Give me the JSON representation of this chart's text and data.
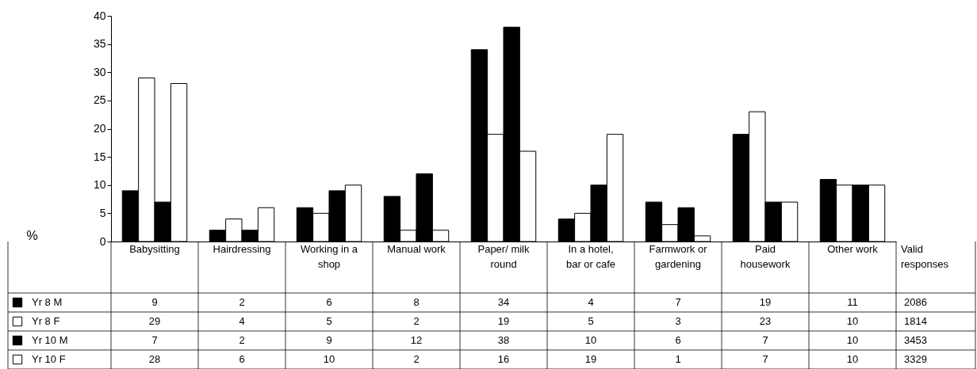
{
  "chart_data": {
    "type": "bar",
    "ylabel": "%",
    "categories": [
      "Babysitting",
      "Hairdressing",
      "Working in a shop",
      "Manual work",
      "Paper/ milk round",
      "In a hotel, bar or cafe",
      "Farmwork or gardening",
      "Paid housework",
      "Other work"
    ],
    "series": [
      {
        "name": "Yr 8 M",
        "color": "#000000",
        "values": [
          9,
          2,
          6,
          8,
          34,
          4,
          7,
          19,
          11
        ]
      },
      {
        "name": "Yr 8 F",
        "color": "#ffffff",
        "values": [
          29,
          4,
          5,
          2,
          19,
          5,
          3,
          23,
          10
        ]
      },
      {
        "name": "Yr 10 M",
        "color": "#000000",
        "values": [
          7,
          2,
          9,
          12,
          38,
          10,
          6,
          7,
          10
        ]
      },
      {
        "name": "Yr 10 F",
        "color": "#ffffff",
        "values": [
          28,
          6,
          10,
          2,
          16,
          19,
          1,
          7,
          10
        ]
      }
    ],
    "ylim": [
      0,
      40
    ],
    "yticks": [
      0,
      5,
      10,
      15,
      20,
      25,
      30,
      35,
      40
    ],
    "grid": false,
    "data_labels": true,
    "legend": "bottom left",
    "annotations": [
      "Valid responses",
      "2086",
      "1814",
      "3453",
      "3329"
    ]
  }
}
